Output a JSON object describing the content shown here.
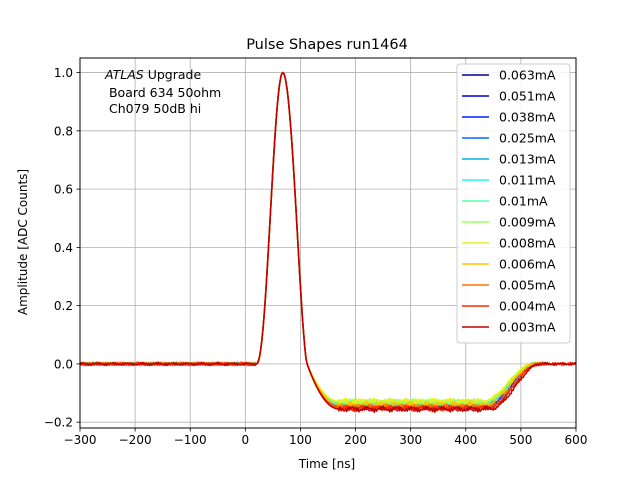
{
  "chart_data": {
    "type": "line",
    "title": "Pulse Shapes run1464",
    "xlabel": "Time [ns]",
    "ylabel": "Amplitude [ADC Counts]",
    "xlim": [
      -300,
      600
    ],
    "ylim": [
      -0.22,
      1.05
    ],
    "xticks": [
      -300,
      -200,
      -100,
      0,
      100,
      200,
      300,
      400,
      500,
      600
    ],
    "yticks": [
      -0.2,
      0.0,
      0.2,
      0.4,
      0.6,
      0.8,
      1.0
    ],
    "xtick_labels": [
      "−300",
      "−200",
      "−100",
      "0",
      "100",
      "200",
      "300",
      "400",
      "500",
      "600"
    ],
    "ytick_labels": [
      "−0.2",
      "0.0",
      "0.2",
      "0.4",
      "0.6",
      "0.8",
      "1.0"
    ],
    "grid": true,
    "legend_position": "top-right",
    "annotation": {
      "atlas": "ATLAS",
      "line1_rest": " Upgrade",
      "line2": " Board 634 50ohm",
      "line3": " Ch079 50dB hi"
    },
    "series": [
      {
        "name": "0.063mA",
        "color": "#00008f",
        "end_x": 545,
        "undershoot": -0.15,
        "t_rise": 440
      },
      {
        "name": "0.051mA",
        "color": "#0000d6",
        "end_x": 545,
        "undershoot": -0.148,
        "t_rise": 440
      },
      {
        "name": "0.038mA",
        "color": "#0022ff",
        "end_x": 545,
        "undershoot": -0.146,
        "t_rise": 438
      },
      {
        "name": "0.025mA",
        "color": "#0066ff",
        "end_x": 545,
        "undershoot": -0.143,
        "t_rise": 437
      },
      {
        "name": "0.013mA",
        "color": "#00b6e6",
        "end_x": 545,
        "undershoot": -0.138,
        "t_rise": 435
      },
      {
        "name": "0.011mA",
        "color": "#1affe6",
        "end_x": 545,
        "undershoot": -0.135,
        "t_rise": 434
      },
      {
        "name": "0.01mA",
        "color": "#5effa0",
        "end_x": 545,
        "undershoot": -0.132,
        "t_rise": 433
      },
      {
        "name": "0.009mA",
        "color": "#a0ff5e",
        "end_x": 545,
        "undershoot": -0.13,
        "t_rise": 433
      },
      {
        "name": "0.008mA",
        "color": "#e6f21a",
        "end_x": 545,
        "undershoot": -0.128,
        "t_rise": 432
      },
      {
        "name": "0.006mA",
        "color": "#ffc000",
        "end_x": 545,
        "undershoot": -0.14,
        "t_rise": 436
      },
      {
        "name": "0.005mA",
        "color": "#ff7400",
        "end_x": 545,
        "undershoot": -0.148,
        "t_rise": 440
      },
      {
        "name": "0.004mA",
        "color": "#ff2a00",
        "end_x": 600,
        "undershoot": -0.152,
        "t_rise": 442
      },
      {
        "name": "0.003mA",
        "color": "#c00000",
        "end_x": 600,
        "undershoot": -0.155,
        "t_rise": 445
      }
    ]
  }
}
